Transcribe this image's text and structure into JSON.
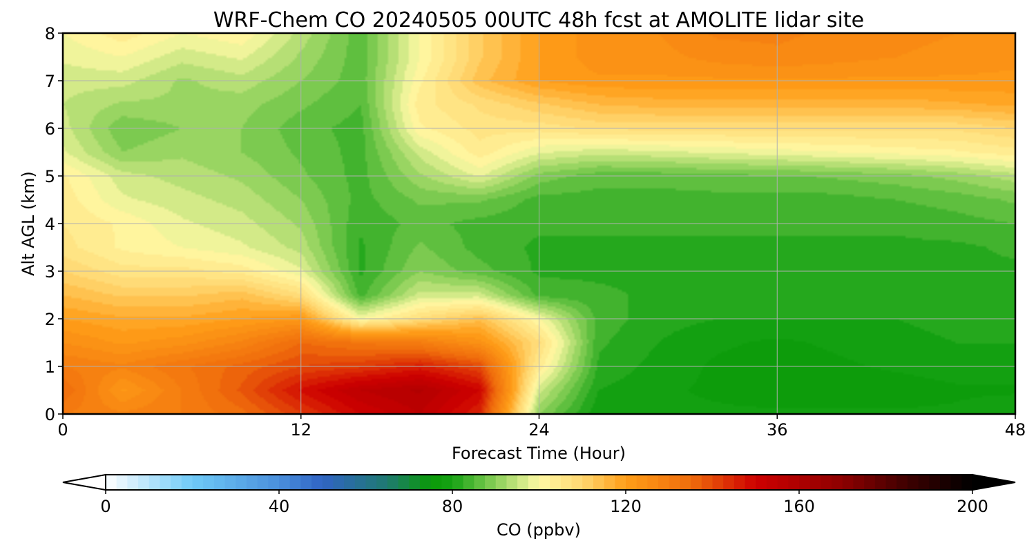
{
  "chart_data": {
    "type": "heatmap",
    "title": "WRF-Chem CO  20240505 00UTC 48h fcst at AMOLITE lidar site",
    "xlabel": "Forecast Time (Hour)",
    "ylabel": "Alt AGL (km)",
    "xlim": [
      0,
      48
    ],
    "ylim": [
      0,
      8
    ],
    "x_ticks": [
      "0",
      "12",
      "24",
      "36",
      "48"
    ],
    "y_ticks": [
      "0",
      "1",
      "2",
      "3",
      "4",
      "5",
      "6",
      "7",
      "8"
    ],
    "grid": true,
    "x": [
      0,
      3,
      6,
      9,
      12,
      15,
      18,
      21,
      24,
      27,
      30,
      33,
      36,
      39,
      42,
      45,
      48
    ],
    "y": [
      0,
      0.5,
      1,
      1.5,
      2,
      2.5,
      3,
      3.5,
      4,
      4.5,
      5,
      5.5,
      6,
      6.5,
      7,
      7.5,
      8
    ],
    "z_units": "ppbv",
    "z": [
      [
        130,
        128,
        130,
        134,
        142,
        150,
        155,
        145,
        90,
        78,
        78,
        78,
        78,
        78,
        78,
        78,
        80
      ],
      [
        135,
        122,
        130,
        138,
        148,
        155,
        158,
        150,
        96,
        80,
        78,
        77,
        76,
        76,
        76,
        77,
        77
      ],
      [
        130,
        128,
        132,
        136,
        140,
        142,
        146,
        140,
        104,
        82,
        79,
        77,
        76,
        77,
        78,
        79,
        79
      ],
      [
        125,
        122,
        124,
        128,
        135,
        132,
        130,
        124,
        108,
        83,
        80,
        78,
        77,
        78,
        79,
        80,
        80
      ],
      [
        120,
        118,
        118,
        120,
        122,
        100,
        108,
        114,
        100,
        84,
        81,
        80,
        80,
        80,
        80,
        81,
        81
      ],
      [
        115,
        112,
        112,
        114,
        108,
        84,
        96,
        96,
        84,
        83,
        82,
        81,
        81,
        81,
        81,
        82,
        82
      ],
      [
        110,
        106,
        106,
        104,
        98,
        82,
        90,
        86,
        82,
        82,
        82,
        82,
        82,
        82,
        82,
        82,
        82
      ],
      [
        106,
        102,
        100,
        98,
        94,
        82,
        88,
        84,
        82,
        82,
        82,
        82,
        82,
        82,
        82,
        82,
        83
      ],
      [
        105,
        102,
        98,
        96,
        92,
        83,
        86,
        84,
        83,
        83,
        83,
        83,
        83,
        83,
        83,
        84,
        85
      ],
      [
        104,
        98,
        96,
        94,
        90,
        84,
        88,
        88,
        84,
        84,
        84,
        84,
        84,
        84,
        85,
        86,
        88
      ],
      [
        103,
        96,
        94,
        92,
        88,
        84,
        92,
        98,
        89,
        86,
        86,
        87,
        87,
        88,
        89,
        91,
        94
      ],
      [
        98,
        90,
        92,
        90,
        87,
        84,
        96,
        104,
        98,
        96,
        97,
        98,
        99,
        100,
        101,
        102,
        104
      ],
      [
        96,
        88,
        90,
        90,
        86,
        84,
        102,
        106,
        106,
        108,
        108,
        108,
        108,
        108,
        108,
        108,
        110
      ],
      [
        95,
        92,
        92,
        91,
        88,
        85,
        104,
        108,
        112,
        115,
        116,
        116,
        116,
        116,
        116,
        117,
        118
      ],
      [
        96,
        96,
        92,
        94,
        90,
        86,
        102,
        114,
        120,
        122,
        122,
        122,
        122,
        122,
        122,
        122,
        122
      ],
      [
        98,
        100,
        96,
        98,
        92,
        86,
        100,
        112,
        120,
        124,
        124,
        126,
        127,
        126,
        125,
        124,
        123
      ],
      [
        100,
        104,
        100,
        102,
        94,
        86,
        100,
        112,
        120,
        124,
        125,
        128,
        128,
        127,
        126,
        125,
        124
      ]
    ],
    "colorbar": {
      "label": "CO  (ppbv)",
      "min": 0,
      "max": 200,
      "extend": "both",
      "ticks": [
        "0",
        "40",
        "80",
        "120",
        "160",
        "200"
      ],
      "stops": [
        {
          "v": 0,
          "c": "#ffffff"
        },
        {
          "v": 20,
          "c": "#6fcaf7"
        },
        {
          "v": 40,
          "c": "#4a8fdc"
        },
        {
          "v": 50,
          "c": "#3064c4"
        },
        {
          "v": 65,
          "c": "#1f7a70"
        },
        {
          "v": 75,
          "c": "#0a9a08"
        },
        {
          "v": 80,
          "c": "#16a214"
        },
        {
          "v": 90,
          "c": "#8ad058"
        },
        {
          "v": 100,
          "c": "#fff9a4"
        },
        {
          "v": 110,
          "c": "#ffd770"
        },
        {
          "v": 120,
          "c": "#ff9e18"
        },
        {
          "v": 135,
          "c": "#f06d0c"
        },
        {
          "v": 150,
          "c": "#cd0000"
        },
        {
          "v": 170,
          "c": "#8d0000"
        },
        {
          "v": 185,
          "c": "#3d0000"
        },
        {
          "v": 200,
          "c": "#000000"
        }
      ]
    }
  }
}
